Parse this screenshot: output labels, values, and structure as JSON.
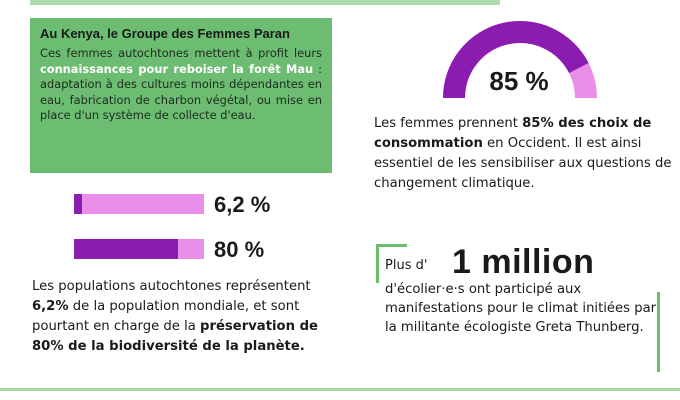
{
  "kenya_box": {
    "title": "Au Kenya, le Groupe des Femmes Paran",
    "text_1": "Ces femmes autochtones mettent à profit leurs ",
    "highlight": "connaissances pour reboiser la forêt Mau",
    "text_2": " : adaptation à des cultures moins dépendantes en eau, fabrication de charbon végétal, ou mise en place d'un système de collecte d'eau."
  },
  "bars": [
    {
      "label": "6,2 %",
      "value": 0.062
    },
    {
      "label": "80 %",
      "value": 0.8
    }
  ],
  "left_para": {
    "p1": "Les populations autochtones représentent ",
    "b1": "6,2%",
    "p2": " de la population mondiale, et sont pourtant en charge de la ",
    "b2": "préservation de 80% de la biodiversité de la planète."
  },
  "gauge": {
    "label": "85 %",
    "value": 0.85,
    "colors": {
      "fill": "#8a1db0",
      "track": "#e98ee8"
    }
  },
  "right_para": {
    "p1": "Les femmes prennent ",
    "b1": "85% des choix de consommation",
    "p2": " en Occident. Il est ainsi essentiel de les sensibiliser aux questions de changement climatique."
  },
  "million": {
    "prefix": "Plus d'",
    "big": "1 million",
    "text": "d'écolier·e·s ont participé aux manifestations pour le climat initiées par la militante écologiste Greta Thunberg."
  },
  "colors": {
    "green": "#6cbd72",
    "purple": "#8a1db0",
    "pink": "#e98ee8"
  }
}
